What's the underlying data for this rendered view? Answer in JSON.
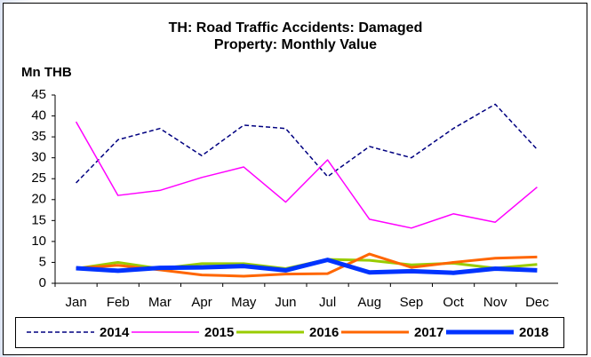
{
  "chart_data": {
    "type": "line",
    "title": "TH: Road Traffic Accidents: Damaged Property: Monthly Value",
    "y_label": "Mn THB",
    "categories": [
      "Jan",
      "Feb",
      "Mar",
      "Apr",
      "May",
      "Jun",
      "Jul",
      "Aug",
      "Sep",
      "Oct",
      "Nov",
      "Dec"
    ],
    "series": [
      {
        "name": "2014",
        "color": "#000080",
        "style": "dashed",
        "width": 1.5,
        "values": [
          24,
          34.3,
          37,
          30.5,
          37.8,
          37,
          25.5,
          32.7,
          30,
          37,
          42.8,
          32
        ]
      },
      {
        "name": "2015",
        "color": "#ff00ff",
        "style": "solid",
        "width": 1.5,
        "values": [
          38.6,
          21,
          22.2,
          25.3,
          27.8,
          19.4,
          29.5,
          15.3,
          13.2,
          16.6,
          14.6,
          23
        ]
      },
      {
        "name": "2016",
        "color": "#99cc00",
        "style": "solid",
        "width": 3,
        "values": [
          3.5,
          5,
          3.5,
          4.7,
          4.7,
          3.5,
          5.7,
          5.5,
          4.4,
          4.8,
          3.6,
          4.5
        ]
      },
      {
        "name": "2017",
        "color": "#ff6600",
        "style": "solid",
        "width": 3,
        "values": [
          3.6,
          4.3,
          3.2,
          2,
          1.7,
          2.2,
          2.3,
          7,
          3.8,
          5,
          6,
          6.3
        ]
      },
      {
        "name": "2018",
        "color": "#0033ff",
        "style": "solid",
        "width": 5,
        "values": [
          3.6,
          3,
          3.7,
          3.8,
          4.1,
          3.1,
          5.6,
          2.6,
          2.9,
          2.5,
          3.5,
          3.1
        ]
      }
    ],
    "ylim": [
      0,
      45
    ],
    "yticks": [
      0,
      5,
      10,
      15,
      20,
      25,
      30,
      35,
      40,
      45
    ],
    "grid": false
  }
}
